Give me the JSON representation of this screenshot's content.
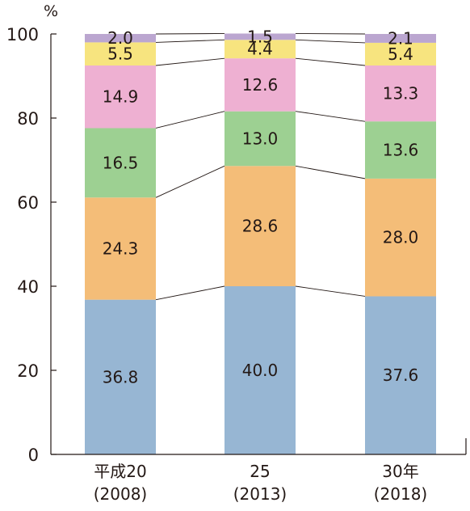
{
  "chart_data": {
    "type": "bar",
    "stacked": true,
    "unit": "%",
    "ylim": [
      0,
      100
    ],
    "yticks": [
      0,
      20,
      40,
      60,
      80,
      100
    ],
    "categories": [
      [
        "平成20",
        "(2008)"
      ],
      [
        "25",
        "(2013)"
      ],
      [
        "30年",
        "(2018)"
      ]
    ],
    "series": [
      {
        "values": [
          36.8,
          40.0,
          37.6
        ],
        "labels": [
          "36.8",
          "40.0",
          "37.6"
        ],
        "color": "#97b6d3"
      },
      {
        "values": [
          24.3,
          28.6,
          28.0
        ],
        "labels": [
          "24.3",
          "28.6",
          "28.0"
        ],
        "color": "#f4bd78"
      },
      {
        "values": [
          16.5,
          13.0,
          13.6
        ],
        "labels": [
          "16.5",
          "13.0",
          "13.6"
        ],
        "color": "#9dd092"
      },
      {
        "values": [
          14.9,
          12.6,
          13.3
        ],
        "labels": [
          "14.9",
          "12.6",
          "13.3"
        ],
        "color": "#eeb0d2"
      },
      {
        "values": [
          5.5,
          4.4,
          5.4
        ],
        "labels": [
          "5.5",
          "4.4",
          "5.4"
        ],
        "color": "#f7e47f"
      },
      {
        "values": [
          2.0,
          1.5,
          2.1
        ],
        "labels": [
          "2.0",
          "1.5",
          "2.1"
        ],
        "color": "#bba6d0"
      }
    ],
    "grid": false,
    "connector_lines": true
  }
}
